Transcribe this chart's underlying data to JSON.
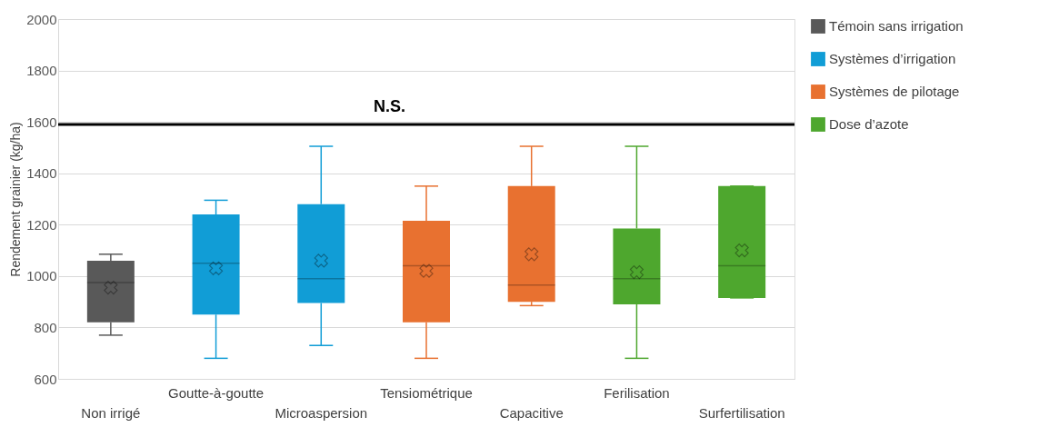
{
  "chart_data": {
    "type": "box",
    "ylabel": "Rendement grainier (kg/ha)",
    "categories": [
      "Non irrigé",
      "Goutte-à-goutte",
      "Microaspersion",
      "Tensiométrique",
      "Capacitive",
      "Ferilisation",
      "Surfertilisation"
    ],
    "series": [
      {
        "name": "Témoin sans irrigation",
        "color": "#595959",
        "x": [
          "Non irrigé"
        ],
        "boxes": [
          {
            "low": 770,
            "q1": 820,
            "median": 975,
            "q3": 1060,
            "high": 1085,
            "mean": 955
          }
        ]
      },
      {
        "name": "Systèmes d’irrigation",
        "color": "#119dd6",
        "x": [
          "Goutte-à-goutte",
          "Microaspersion"
        ],
        "boxes": [
          {
            "low": 680,
            "q1": 850,
            "median": 1050,
            "q3": 1240,
            "high": 1295,
            "mean": 1030
          },
          {
            "low": 730,
            "q1": 895,
            "median": 990,
            "q3": 1280,
            "high": 1505,
            "mean": 1060
          }
        ]
      },
      {
        "name": "Systèmes de pilotage",
        "color": "#e87130",
        "x": [
          "Tensiométrique",
          "Capacitive"
        ],
        "boxes": [
          {
            "low": 680,
            "q1": 820,
            "median": 1040,
            "q3": 1215,
            "high": 1350,
            "mean": 1020
          },
          {
            "low": 885,
            "q1": 900,
            "median": 965,
            "q3": 1350,
            "high": 1505,
            "mean": 1085
          }
        ]
      },
      {
        "name": "Dose d’azote",
        "color": "#4ea72e",
        "x": [
          "Ferilisation",
          "Surfertilisation"
        ],
        "boxes": [
          {
            "low": 680,
            "q1": 890,
            "median": 990,
            "q3": 1185,
            "high": 1505,
            "mean": 1015
          },
          {
            "low": 915,
            "q1": 915,
            "median": 1040,
            "q3": 1350,
            "high": 1350,
            "mean": 1100
          }
        ]
      }
    ],
    "ylim": [
      600,
      2000
    ],
    "yticks": [
      600,
      800,
      1000,
      1200,
      1400,
      1600,
      1800,
      2000
    ],
    "ref_lines": [
      {
        "axis": "y",
        "value": 1590,
        "label": "N.S.",
        "color": "#000000"
      }
    ],
    "grid": "y",
    "legend": "right"
  }
}
